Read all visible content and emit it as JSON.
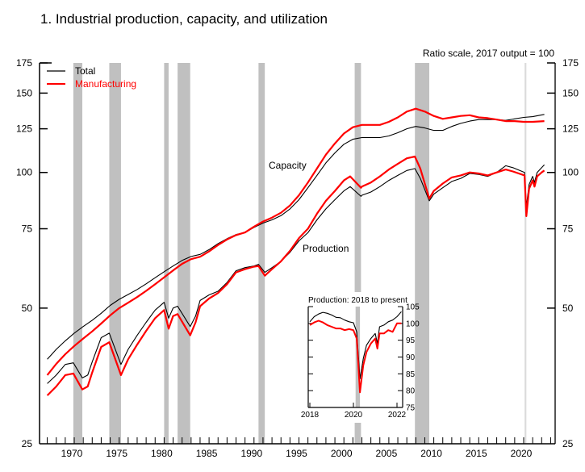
{
  "title": "1.  Industrial production, capacity, and utilization",
  "chart_data": {
    "type": "line",
    "title": "1.  Industrial production, capacity, and utilization",
    "note": "Ratio scale, 2017 output = 100",
    "yscale": "log",
    "ylim": [
      25,
      175
    ],
    "yticks": [
      25,
      50,
      75,
      100,
      125,
      150,
      175
    ],
    "xlim": [
      1966,
      2023
    ],
    "xticks": [
      1970,
      1975,
      1980,
      1985,
      1990,
      1995,
      2000,
      2005,
      2010,
      2015,
      2020
    ],
    "xtick_labels": [
      "1970",
      "1975",
      "1980",
      "1985",
      "1990",
      "1995",
      "2000",
      "2005",
      "2010",
      "2015",
      "2020"
    ],
    "ytick_labels": [
      "25",
      "50",
      "75",
      "100",
      "125",
      "150",
      "175"
    ],
    "legend": {
      "position": "top-left",
      "entries": [
        {
          "name": "Total",
          "color": "#000000"
        },
        {
          "name": "Manufacturing",
          "color": "#ff0000"
        }
      ]
    },
    "annotations": [
      "Capacity",
      "Production"
    ],
    "recessions": [
      [
        1969.9,
        1970.9
      ],
      [
        1973.9,
        1975.2
      ],
      [
        1980.0,
        1980.5
      ],
      [
        1981.5,
        1982.9
      ],
      [
        1990.5,
        1991.2
      ],
      [
        2001.2,
        2001.9
      ],
      [
        2007.9,
        2009.5
      ],
      [
        2020.1,
        2020.3
      ]
    ],
    "series": [
      {
        "name": "Total capacity",
        "color": "#000000",
        "x": [
          1967,
          1968,
          1969,
          1970,
          1971,
          1972,
          1973,
          1974,
          1975,
          1976,
          1977,
          1978,
          1979,
          1980,
          1981,
          1982,
          1983,
          1984,
          1985,
          1986,
          1987,
          1988,
          1989,
          1990,
          1991,
          1992,
          1993,
          1994,
          1995,
          1996,
          1997,
          1998,
          1999,
          2000,
          2001,
          2002,
          2003,
          2004,
          2005,
          2006,
          2007,
          2008,
          2009,
          2010,
          2011,
          2012,
          2013,
          2014,
          2015,
          2016,
          2017,
          2018,
          2019,
          2020,
          2021,
          2022.3
        ],
        "values": [
          38.5,
          40.5,
          42.3,
          44.0,
          45.5,
          47.0,
          48.7,
          50.7,
          52.3,
          53.6,
          55.0,
          56.6,
          58.4,
          60.2,
          62.0,
          63.8,
          65.1,
          65.8,
          67.4,
          69.5,
          71.3,
          72.8,
          73.6,
          75.5,
          77.2,
          78.5,
          80.2,
          83.0,
          87.0,
          92.5,
          98.5,
          105.0,
          110.5,
          115.5,
          118.5,
          119.5,
          119.5,
          119.5,
          120.5,
          122.5,
          125.0,
          126.5,
          125.5,
          124.0,
          124.0,
          126.5,
          128.5,
          130.0,
          131.0,
          131.0,
          131.0,
          130.5,
          131.5,
          132.5,
          133.0,
          134.5
        ]
      },
      {
        "name": "Manufacturing capacity",
        "color": "#ff0000",
        "x": [
          1967,
          1968,
          1969,
          1970,
          1971,
          1972,
          1973,
          1974,
          1975,
          1976,
          1977,
          1978,
          1979,
          1980,
          1981,
          1982,
          1983,
          1984,
          1985,
          1986,
          1987,
          1988,
          1989,
          1990,
          1991,
          1992,
          1993,
          1994,
          1995,
          1996,
          1997,
          1998,
          1999,
          2000,
          2001,
          2002,
          2003,
          2004,
          2005,
          2006,
          2007,
          2008,
          2009,
          2010,
          2011,
          2012,
          2013,
          2014,
          2015,
          2016,
          2017,
          2018,
          2019,
          2020,
          2021,
          2022.3
        ],
        "values": [
          35.5,
          37.6,
          39.5,
          41.2,
          42.8,
          44.4,
          46.2,
          48.2,
          50.0,
          51.4,
          52.9,
          54.6,
          56.5,
          58.5,
          60.6,
          62.7,
          64.2,
          65.0,
          66.8,
          69.0,
          71.0,
          72.6,
          73.6,
          75.8,
          77.8,
          79.4,
          81.4,
          84.5,
          89.0,
          95.0,
          102.0,
          109.5,
          116.0,
          122.0,
          126.0,
          127.5,
          127.5,
          127.5,
          129.5,
          132.5,
          136.5,
          138.5,
          136.5,
          133.5,
          131.5,
          132.5,
          133.5,
          134.0,
          132.5,
          132.0,
          131.0,
          130.0,
          130.0,
          129.5,
          129.5,
          130.0
        ]
      },
      {
        "name": "Total production",
        "color": "#000000",
        "x": [
          1967,
          1968,
          1969,
          1969.9,
          1970.9,
          1971.5,
          1972,
          1973,
          1973.9,
          1975.2,
          1976,
          1977,
          1978,
          1979,
          1980.0,
          1980.5,
          1981,
          1981.5,
          1982.9,
          1983.5,
          1984,
          1985,
          1986,
          1987,
          1988,
          1989,
          1990,
          1990.5,
          1991.2,
          1992,
          1993,
          1994,
          1995,
          1996,
          1997,
          1998,
          1999,
          2000,
          2000.7,
          2001.9,
          2002,
          2003,
          2004,
          2005,
          2006,
          2007,
          2007.9,
          2008.5,
          2009.5,
          2010,
          2011,
          2012,
          2013,
          2014,
          2015,
          2016,
          2017,
          2018,
          2018.8,
          2020.1,
          2020.3,
          2020.6,
          2021,
          2021.2,
          2021.5,
          2022,
          2022.3
        ],
        "values": [
          34.0,
          35.5,
          37.5,
          37.8,
          35.0,
          35.5,
          38.0,
          43.0,
          44.0,
          37.5,
          40.5,
          43.5,
          46.5,
          49.5,
          51.5,
          47.5,
          50.0,
          50.5,
          45.5,
          48.0,
          52.0,
          53.5,
          54.5,
          57.0,
          60.5,
          61.5,
          62.0,
          62.5,
          60.0,
          61.5,
          63.5,
          66.5,
          70.5,
          73.5,
          78.5,
          83.0,
          87.0,
          91.0,
          93.0,
          88.5,
          89.0,
          90.5,
          93.0,
          96.0,
          98.5,
          101.0,
          102.0,
          97.0,
          86.5,
          89.5,
          92.5,
          95.5,
          97.0,
          99.5,
          99.0,
          98.0,
          100.0,
          103.5,
          102.5,
          100.0,
          84.0,
          94.0,
          98.0,
          95.0,
          100.0,
          102.5,
          104.0
        ]
      },
      {
        "name": "Manufacturing production",
        "color": "#ff0000",
        "x": [
          1967,
          1968,
          1969,
          1969.9,
          1970.9,
          1971.5,
          1972,
          1973,
          1973.9,
          1975.2,
          1976,
          1977,
          1978,
          1979,
          1980.0,
          1980.5,
          1981,
          1981.5,
          1982.9,
          1983.5,
          1984,
          1985,
          1986,
          1987,
          1988,
          1989,
          1990,
          1990.5,
          1991.2,
          1992,
          1993,
          1994,
          1995,
          1996,
          1997,
          1998,
          1999,
          2000,
          2000.7,
          2001.9,
          2002,
          2003,
          2004,
          2005,
          2006,
          2007,
          2007.9,
          2008.5,
          2009.5,
          2010,
          2011,
          2012,
          2013,
          2014,
          2015,
          2016,
          2017,
          2018,
          2018.8,
          2020.1,
          2020.3,
          2020.6,
          2021,
          2021.2,
          2021.5,
          2022,
          2022.3
        ],
        "values": [
          32.0,
          33.5,
          35.5,
          35.8,
          33.0,
          33.5,
          36.0,
          41.0,
          42.0,
          35.5,
          38.5,
          41.5,
          44.5,
          47.5,
          49.5,
          45.0,
          48.0,
          48.5,
          43.5,
          46.5,
          50.5,
          52.5,
          54.0,
          56.5,
          60.0,
          61.0,
          61.8,
          62.0,
          59.0,
          61.0,
          63.5,
          67.0,
          71.5,
          75.0,
          81.0,
          86.5,
          91.0,
          96.0,
          98.0,
          92.5,
          93.0,
          95.0,
          98.0,
          101.5,
          104.5,
          107.5,
          108.5,
          102.0,
          87.5,
          91.0,
          94.5,
          97.5,
          98.5,
          100.0,
          99.5,
          98.5,
          100.0,
          101.5,
          100.5,
          98.5,
          80.0,
          92.0,
          96.0,
          93.0,
          98.0,
          100.0,
          101.0
        ]
      }
    ],
    "inset": {
      "title": "Production: 2018 to present",
      "ylim": [
        75,
        105
      ],
      "yticks": [
        75,
        80,
        85,
        90,
        95,
        100,
        105
      ],
      "ytick_labels": [
        "75",
        "80",
        "85",
        "90",
        "95",
        "100",
        "105"
      ],
      "xlim": [
        2017.8,
        2022.5
      ],
      "xticks": [
        2018,
        2020,
        2022
      ],
      "xtick_labels": [
        "2018",
        "2020",
        "2022"
      ],
      "recession": [
        2020.1,
        2020.3
      ],
      "series": [
        {
          "name": "Total",
          "color": "#000000",
          "x": [
            2018.0,
            2018.2,
            2018.4,
            2018.6,
            2018.8,
            2019.0,
            2019.2,
            2019.4,
            2019.6,
            2019.8,
            2020.0,
            2020.15,
            2020.3,
            2020.45,
            2020.6,
            2020.8,
            2021.0,
            2021.1,
            2021.2,
            2021.4,
            2021.6,
            2021.8,
            2022.0,
            2022.2
          ],
          "values": [
            100.5,
            102.0,
            102.8,
            103.3,
            103.0,
            102.5,
            101.8,
            101.7,
            101.0,
            100.5,
            100.2,
            97.5,
            83.5,
            89.5,
            93.5,
            95.5,
            97.0,
            94.0,
            99.0,
            99.5,
            100.5,
            101.0,
            102.0,
            103.5
          ]
        },
        {
          "name": "Manufacturing",
          "color": "#ff0000",
          "x": [
            2018.0,
            2018.2,
            2018.4,
            2018.6,
            2018.8,
            2019.0,
            2019.2,
            2019.4,
            2019.6,
            2019.8,
            2020.0,
            2020.15,
            2020.3,
            2020.45,
            2020.6,
            2020.8,
            2021.0,
            2021.1,
            2021.2,
            2021.4,
            2021.6,
            2021.8,
            2022.0,
            2022.2
          ],
          "values": [
            99.5,
            100.3,
            100.8,
            100.3,
            99.5,
            99.0,
            98.5,
            98.5,
            98.0,
            98.3,
            98.0,
            95.5,
            79.5,
            87.5,
            91.5,
            94.0,
            95.5,
            92.5,
            97.0,
            97.0,
            98.0,
            97.5,
            100.0,
            100.0
          ]
        }
      ]
    }
  }
}
